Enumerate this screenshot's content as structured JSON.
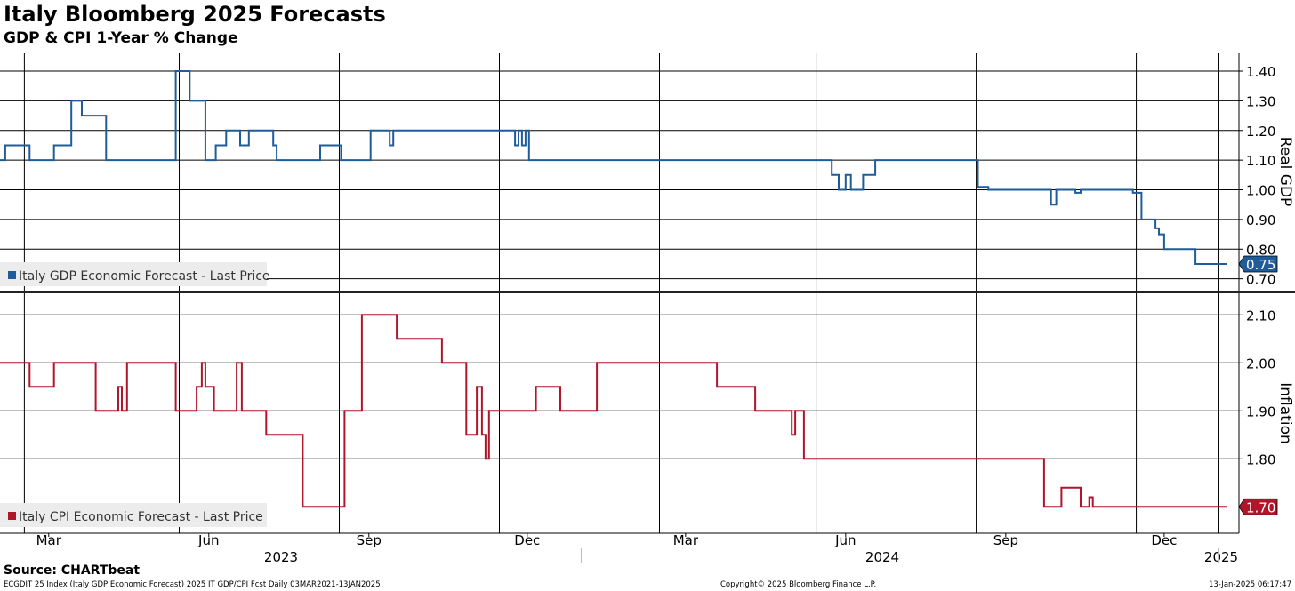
{
  "title": "Italy Bloomberg 2025 Forecasts",
  "subtitle": "GDP & CPI 1-Year % Change",
  "source": "Source: CHARTbeat",
  "footer": {
    "left": "ECGDIT 25 Index (Italy GDP Economic Forecast) 2025 IT GDP/CPI Fcst  Daily 03MAR2021-13JAN2025",
    "center": "Copyright© 2025 Bloomberg Finance L.P.",
    "right": "13-Jan-2025 06:17:47"
  },
  "colors": {
    "gdp": "#1f5c99",
    "cpi": "#b0152a",
    "grid": "#000000"
  },
  "chart_data": [
    {
      "type": "line",
      "ylabel": "Real GDP",
      "ylim": [
        0.66,
        1.46
      ],
      "yticks": [
        "0.70",
        "0.80",
        "0.90",
        "1.00",
        "1.10",
        "1.20",
        "1.30",
        "1.40"
      ],
      "xlim": [
        "2023-02-01",
        "2025-01-13"
      ],
      "grid": true,
      "legend": "bottom-left",
      "last_value_label": "0.75",
      "series": [
        {
          "name": "Italy GDP Economic Forecast - Last Price",
          "x": [
            "2023-02-01",
            "2023-02-04",
            "2023-02-18",
            "2023-03-04",
            "2023-03-14",
            "2023-03-20",
            "2023-04-03",
            "2023-05-13",
            "2023-05-21",
            "2023-05-30",
            "2023-06-03",
            "2023-06-05",
            "2023-06-11",
            "2023-06-19",
            "2023-06-21",
            "2023-06-24",
            "2023-07-08",
            "2023-07-10",
            "2023-08-01",
            "2023-08-04",
            "2023-08-16",
            "2023-09-02",
            "2023-09-13",
            "2023-09-15",
            "2023-11-24",
            "2023-11-26",
            "2023-11-28",
            "2023-11-30",
            "2023-12-02",
            "2023-12-06",
            "2024-05-24",
            "2024-05-28",
            "2024-06-01",
            "2024-06-04",
            "2024-06-08",
            "2024-06-11",
            "2024-06-18",
            "2024-06-22",
            "2024-08-16",
            "2024-08-22",
            "2024-09-27",
            "2024-09-30",
            "2024-10-11",
            "2024-10-14",
            "2024-11-13",
            "2024-11-18",
            "2024-11-26",
            "2024-11-28",
            "2024-12-01",
            "2024-12-19",
            "2025-01-06"
          ],
          "y": [
            1.1,
            1.15,
            1.1,
            1.15,
            1.3,
            1.25,
            1.1,
            1.4,
            1.3,
            1.1,
            1.1,
            1.15,
            1.2,
            1.15,
            1.15,
            1.2,
            1.15,
            1.1,
            1.1,
            1.15,
            1.1,
            1.2,
            1.15,
            1.2,
            1.15,
            1.2,
            1.15,
            1.2,
            1.1,
            1.1,
            1.05,
            1.0,
            1.05,
            1.0,
            1.0,
            1.05,
            1.1,
            1.1,
            1.01,
            1.0,
            0.95,
            1.0,
            0.99,
            1.0,
            0.99,
            0.9,
            0.87,
            0.85,
            0.8,
            0.75,
            0.75
          ]
        }
      ]
    },
    {
      "type": "line",
      "ylabel": "Inflation",
      "ylim": [
        1.645,
        2.145
      ],
      "yticks": [
        "1.80",
        "1.90",
        "2.00",
        "2.10"
      ],
      "xlim": [
        "2023-02-01",
        "2025-01-13"
      ],
      "xticks": [
        "Mar",
        "Jun",
        "Sep",
        "Dec",
        "Mar",
        "Jun",
        "Sep",
        "Dec"
      ],
      "years": [
        "2023",
        "2024",
        "2025"
      ],
      "grid": true,
      "legend": "bottom-left",
      "last_value_label": "1.70",
      "series": [
        {
          "name": "Italy CPI Economic Forecast - Last Price",
          "x": [
            "2023-02-01",
            "2023-02-18",
            "2023-03-04",
            "2023-03-28",
            "2023-04-10",
            "2023-04-12",
            "2023-04-15",
            "2023-05-13",
            "2023-05-25",
            "2023-05-28",
            "2023-05-30",
            "2023-06-04",
            "2023-06-17",
            "2023-06-20",
            "2023-07-04",
            "2023-07-08",
            "2023-07-25",
            "2023-08-18",
            "2023-08-28",
            "2023-09-17",
            "2023-10-13",
            "2023-10-27",
            "2023-11-02",
            "2023-11-05",
            "2023-11-07",
            "2023-11-09",
            "2023-11-14",
            "2023-11-24",
            "2023-12-06",
            "2023-12-20",
            "2024-01-01",
            "2024-01-10",
            "2024-03-08",
            "2024-03-19",
            "2024-04-10",
            "2024-05-01",
            "2024-05-03",
            "2024-05-04",
            "2024-05-08",
            "2024-07-10",
            "2024-09-23",
            "2024-09-26",
            "2024-10-03",
            "2024-10-14",
            "2024-10-19",
            "2024-10-21",
            "2025-01-06"
          ],
          "y": [
            2.0,
            1.95,
            2.0,
            1.9,
            1.95,
            1.9,
            2.0,
            1.9,
            1.95,
            2.0,
            1.95,
            1.9,
            2.0,
            1.9,
            1.85,
            1.85,
            1.7,
            1.9,
            2.1,
            2.05,
            2.0,
            1.85,
            1.95,
            1.85,
            1.8,
            1.9,
            1.9,
            1.9,
            1.95,
            1.9,
            1.9,
            2.0,
            2.0,
            1.95,
            1.9,
            1.85,
            1.9,
            1.9,
            1.8,
            1.8,
            1.7,
            1.7,
            1.74,
            1.7,
            1.72,
            1.7,
            1.7
          ]
        }
      ]
    }
  ]
}
